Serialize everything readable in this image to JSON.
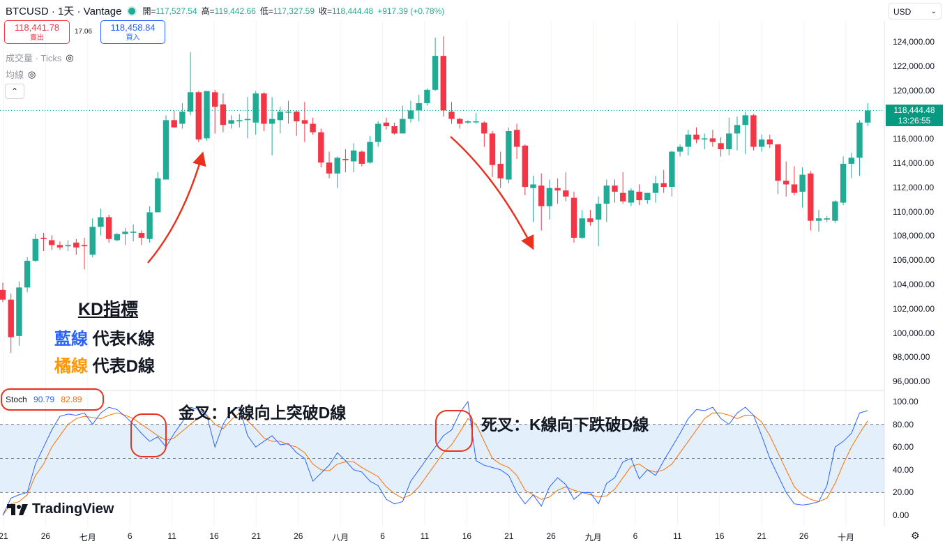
{
  "header": {
    "symbol": "BTCUSD · 1天 · Vantage",
    "open_label": "開=",
    "open_value": "117,527.54",
    "high_label": "高=",
    "high_value": "119,442.66",
    "low_label": "低=",
    "low_value": "117,327.59",
    "close_label": "收=",
    "close_value": "118,444.48",
    "change": "+917.39 (+0.78%)"
  },
  "trade": {
    "sell_price": "118,441.78",
    "sell_label": "賣出",
    "spread": "17.06",
    "buy_price": "118,458.84",
    "buy_label": "買入"
  },
  "indicators": {
    "volume": "成交量 · Ticks",
    "ma": "均線"
  },
  "currency": "USD",
  "price_axis": [
    "124,000.00",
    "122,000.00",
    "120,000.00",
    "118,000.00",
    "116,000.00",
    "114,000.00",
    "112,000.00",
    "110,000.00",
    "108,000.00",
    "106,000.00",
    "104,000.00",
    "102,000.00",
    "100,000.00",
    "98,000.00",
    "96,000.00"
  ],
  "last_price": {
    "price": "118,444.48",
    "countdown": "13:26:55"
  },
  "stoch_axis": [
    "100.00",
    "80.00",
    "60.00",
    "40.00",
    "20.00",
    "0.00"
  ],
  "stoch": {
    "name": "Stoch",
    "k": "90.79",
    "d": "82.89",
    "k_color": "#2962ff",
    "d_color": "#ff6d00"
  },
  "x_axis": [
    "21",
    "26",
    "七月",
    "6",
    "11",
    "16",
    "21",
    "26",
    "八月",
    "6",
    "11",
    "16",
    "21",
    "26",
    "九月",
    "6",
    "11",
    "16",
    "21",
    "26",
    "十月"
  ],
  "annotations": {
    "kd_title": "KD指標",
    "blue_word": "藍線",
    "blue_rest": " 代表K線",
    "orange_word": "橘線",
    "orange_rest": " 代表D線",
    "golden_cross": "金叉：K線向上突破D線",
    "death_cross": "死叉：K線向下跌破D線"
  },
  "logo": "TradingView",
  "colors": {
    "up": "#22ab94",
    "down": "#f23645",
    "arrow": "#e8321e",
    "band": "#e3f0fc"
  },
  "chart_data": {
    "type": "candlestick",
    "series": [
      {
        "name": "BTCUSD",
        "ohlc": [
          [
            103600,
            104200,
            102600,
            102800
          ],
          [
            102800,
            103300,
            98400,
            99700
          ],
          [
            99800,
            104300,
            99000,
            103800
          ],
          [
            103800,
            106300,
            103400,
            106000
          ],
          [
            106000,
            108200,
            105900,
            107800
          ],
          [
            107900,
            108300,
            106800,
            107800
          ],
          [
            107700,
            108100,
            106900,
            107300
          ],
          [
            107300,
            107600,
            106900,
            107100
          ],
          [
            107200,
            107700,
            106800,
            107300
          ],
          [
            107500,
            107800,
            106500,
            107100
          ],
          [
            107300,
            107900,
            105300,
            107200
          ],
          [
            106500,
            109500,
            106300,
            108800
          ],
          [
            108800,
            110300,
            108100,
            109600
          ],
          [
            109600,
            109800,
            107500,
            107800
          ],
          [
            107700,
            108300,
            107600,
            108200
          ],
          [
            108200,
            108700,
            107300,
            108400
          ],
          [
            108400,
            109000,
            107600,
            108400
          ],
          [
            108300,
            108500,
            107300,
            107900
          ],
          [
            107800,
            110500,
            107500,
            110000
          ],
          [
            110000,
            113300,
            110000,
            112800
          ],
          [
            112700,
            118000,
            112700,
            117600
          ],
          [
            117600,
            118400,
            117100,
            117000
          ],
          [
            117300,
            119000,
            116900,
            118300
          ],
          [
            118300,
            123200,
            118000,
            119900
          ],
          [
            119900,
            120000,
            115800,
            116000
          ],
          [
            116100,
            119900,
            115900,
            120000
          ],
          [
            119900,
            120100,
            116500,
            118700
          ],
          [
            118900,
            119800,
            116600,
            117200
          ],
          [
            117300,
            118000,
            116900,
            117600
          ],
          [
            117500,
            118100,
            117000,
            117600
          ],
          [
            117600,
            119500,
            116100,
            117700
          ],
          [
            117400,
            120000,
            116400,
            119800
          ],
          [
            119800,
            119900,
            116700,
            117300
          ],
          [
            117300,
            119500,
            114700,
            117700
          ],
          [
            117600,
            118700,
            116500,
            118300
          ],
          [
            118300,
            119200,
            117300,
            118300
          ],
          [
            118300,
            118400,
            116300,
            117500
          ],
          [
            117600,
            119100,
            115800,
            117300
          ],
          [
            117300,
            117800,
            116400,
            116600
          ],
          [
            116600,
            116900,
            113700,
            114100
          ],
          [
            114100,
            115000,
            112800,
            113200
          ],
          [
            113200,
            114600,
            112000,
            114500
          ],
          [
            114400,
            115200,
            113300,
            114300
          ],
          [
            114200,
            115700,
            113300,
            115100
          ],
          [
            115000,
            115100,
            113800,
            114000
          ],
          [
            114100,
            116300,
            114000,
            115800
          ],
          [
            115800,
            117500,
            115400,
            117300
          ],
          [
            117400,
            117800,
            116800,
            117100
          ],
          [
            117100,
            117400,
            116400,
            116500
          ],
          [
            116500,
            118800,
            116600,
            117700
          ],
          [
            117700,
            119200,
            117400,
            118400
          ],
          [
            118400,
            119700,
            117500,
            119000
          ],
          [
            119000,
            120200,
            118800,
            120100
          ],
          [
            120100,
            124400,
            120000,
            122900
          ],
          [
            122900,
            124500,
            117900,
            118400
          ],
          [
            118300,
            119100,
            117300,
            117700
          ],
          [
            117700,
            117800,
            116900,
            117300
          ],
          [
            117400,
            117600,
            117300,
            117500
          ],
          [
            117500,
            118200,
            117300,
            117500
          ],
          [
            117400,
            117500,
            115400,
            116500
          ],
          [
            116500,
            116700,
            112900,
            113900
          ],
          [
            114000,
            115000,
            112000,
            112800
          ],
          [
            112700,
            117000,
            112400,
            116700
          ],
          [
            116800,
            117300,
            114400,
            115400
          ],
          [
            115500,
            115600,
            111400,
            112100
          ],
          [
            112000,
            113000,
            109200,
            112300
          ],
          [
            112200,
            113200,
            108500,
            110500
          ],
          [
            110500,
            112700,
            109400,
            112000
          ],
          [
            112000,
            112800,
            110700,
            111800
          ],
          [
            111800,
            113300,
            110900,
            111300
          ],
          [
            111200,
            111700,
            107500,
            107900
          ],
          [
            107900,
            110200,
            107800,
            109500
          ],
          [
            109500,
            110200,
            108900,
            109200
          ],
          [
            109400,
            111300,
            107200,
            110700
          ],
          [
            110700,
            112700,
            109200,
            112200
          ],
          [
            112200,
            112700,
            110800,
            111700
          ],
          [
            111600,
            113300,
            110700,
            110900
          ],
          [
            110800,
            112000,
            110500,
            111800
          ],
          [
            111700,
            112300,
            110600,
            111000
          ],
          [
            111000,
            111600,
            110700,
            111600
          ],
          [
            111600,
            113000,
            110800,
            112400
          ],
          [
            112400,
            113500,
            111600,
            112100
          ],
          [
            112100,
            115100,
            111300,
            115000
          ],
          [
            115000,
            115600,
            114600,
            115400
          ],
          [
            115400,
            116800,
            114700,
            116400
          ],
          [
            116400,
            117000,
            115700,
            116000
          ],
          [
            116000,
            116500,
            115200,
            116100
          ],
          [
            116100,
            116800,
            115400,
            115800
          ],
          [
            115700,
            116200,
            114600,
            115200
          ],
          [
            115200,
            117800,
            114700,
            116500
          ],
          [
            116500,
            117900,
            115100,
            117200
          ],
          [
            117200,
            118300,
            114800,
            118000
          ],
          [
            118000,
            118100,
            115100,
            115400
          ],
          [
            115400,
            116400,
            115000,
            116000
          ],
          [
            116000,
            116400,
            115300,
            115600
          ],
          [
            115600,
            115600,
            111500,
            112600
          ],
          [
            112600,
            114200,
            111300,
            112300
          ],
          [
            112300,
            113800,
            111400,
            111600
          ],
          [
            111700,
            113700,
            110400,
            113100
          ],
          [
            113200,
            113400,
            108500,
            109300
          ],
          [
            109300,
            110200,
            108400,
            109500
          ],
          [
            109400,
            109700,
            109200,
            109500
          ],
          [
            109300,
            111000,
            109100,
            110900
          ],
          [
            110800,
            114600,
            110600,
            114000
          ],
          [
            114000,
            114900,
            112800,
            114500
          ],
          [
            114500,
            117600,
            113000,
            117400
          ],
          [
            117400,
            119000,
            117100,
            118400
          ]
        ]
      }
    ],
    "stoch_k": [
      0,
      15,
      18,
      20,
      45,
      60,
      75,
      87,
      89,
      88,
      90,
      80,
      90,
      95,
      93,
      87,
      80,
      72,
      65,
      69,
      60,
      72,
      82,
      95,
      93,
      88,
      60,
      80,
      92,
      95,
      70,
      60,
      65,
      70,
      62,
      63,
      55,
      50,
      30,
      37,
      44,
      55,
      48,
      40,
      38,
      30,
      26,
      14,
      10,
      12,
      30,
      40,
      50,
      60,
      70,
      75,
      90,
      100,
      48,
      44,
      42,
      40,
      35,
      20,
      10,
      18,
      8,
      25,
      33,
      27,
      14,
      20,
      20,
      10,
      28,
      33,
      47,
      50,
      32,
      40,
      35,
      48,
      60,
      72,
      85,
      93,
      92,
      95,
      85,
      80,
      90,
      95,
      88,
      70,
      50,
      35,
      20,
      10,
      9,
      10,
      12,
      26,
      60,
      65,
      72,
      90,
      92
    ],
    "stoch_d": [
      0,
      10,
      12,
      18,
      35,
      45,
      60,
      70,
      80,
      85,
      87,
      86,
      85,
      88,
      90,
      88,
      85,
      80,
      75,
      70,
      66,
      68,
      74,
      80,
      86,
      88,
      80,
      76,
      84,
      90,
      83,
      76,
      68,
      65,
      65,
      62,
      60,
      55,
      45,
      40,
      39,
      45,
      47,
      47,
      42,
      38,
      34,
      25,
      19,
      15,
      18,
      25,
      35,
      45,
      55,
      62,
      73,
      85,
      80,
      65,
      50,
      45,
      42,
      35,
      22,
      18,
      14,
      16,
      22,
      25,
      22,
      20,
      18,
      16,
      17,
      23,
      33,
      43,
      45,
      40,
      38,
      40,
      45,
      55,
      65,
      75,
      85,
      90,
      90,
      88,
      85,
      88,
      88,
      82,
      70,
      55,
      40,
      25,
      18,
      14,
      12,
      15,
      28,
      45,
      60,
      72,
      83
    ]
  }
}
